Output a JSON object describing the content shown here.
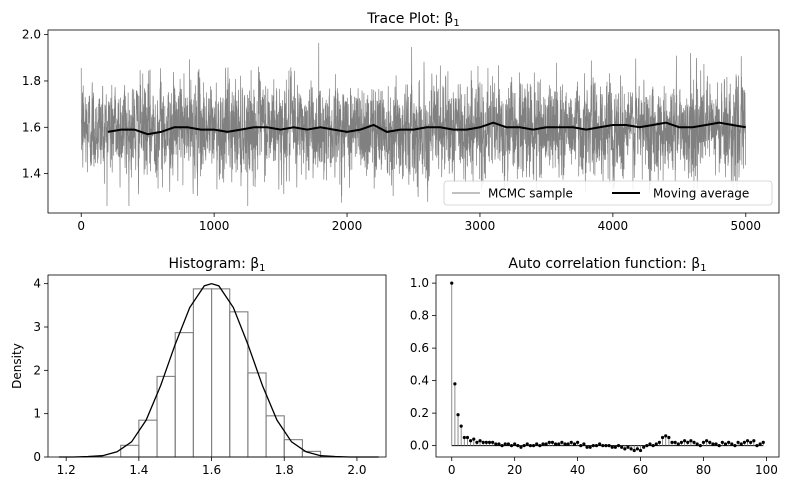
{
  "chart_data": [
    {
      "type": "line",
      "title": "Trace Plot: β",
      "title_sub": "1",
      "xlim": [
        -250,
        5250
      ],
      "ylim": [
        1.23,
        2.02
      ],
      "xticks": [
        0,
        1000,
        2000,
        3000,
        4000,
        5000
      ],
      "yticks": [
        1.4,
        1.6,
        1.8,
        2.0
      ],
      "n_samples": 5000,
      "mean": 1.595,
      "sd": 0.1,
      "series": [
        {
          "name": "MCMC sample",
          "color": "#808080",
          "role": "trace"
        },
        {
          "name": "Moving average",
          "color": "#000000",
          "role": "moving_average",
          "x": [
            200,
            300,
            400,
            500,
            600,
            700,
            800,
            900,
            1000,
            1100,
            1200,
            1300,
            1400,
            1500,
            1600,
            1700,
            1800,
            1900,
            2000,
            2100,
            2200,
            2300,
            2400,
            2500,
            2600,
            2700,
            2800,
            2900,
            3000,
            3100,
            3200,
            3300,
            3400,
            3500,
            3600,
            3700,
            3800,
            3900,
            4000,
            4100,
            4200,
            4300,
            4400,
            4500,
            4600,
            4700,
            4800,
            4900,
            5000
          ],
          "y": [
            1.58,
            1.59,
            1.59,
            1.57,
            1.58,
            1.6,
            1.6,
            1.59,
            1.59,
            1.58,
            1.59,
            1.6,
            1.6,
            1.59,
            1.6,
            1.59,
            1.6,
            1.59,
            1.58,
            1.59,
            1.61,
            1.58,
            1.59,
            1.59,
            1.6,
            1.6,
            1.59,
            1.59,
            1.6,
            1.62,
            1.6,
            1.6,
            1.59,
            1.6,
            1.6,
            1.6,
            1.59,
            1.6,
            1.61,
            1.61,
            1.6,
            1.61,
            1.62,
            1.6,
            1.6,
            1.61,
            1.62,
            1.61,
            1.6
          ]
        }
      ],
      "legend": "lower-right"
    },
    {
      "type": "bar",
      "title": "Histogram: β",
      "title_sub": "1",
      "ylabel": "Density",
      "xlim": [
        1.15,
        2.08
      ],
      "ylim": [
        0,
        4.2
      ],
      "xticks": [
        1.2,
        1.4,
        1.6,
        1.8,
        2.0
      ],
      "yticks": [
        0,
        1,
        2,
        3,
        4
      ],
      "bin_edges": [
        1.35,
        1.4,
        1.45,
        1.5,
        1.55,
        1.6,
        1.65,
        1.7,
        1.75,
        1.8,
        1.85,
        1.9
      ],
      "values": [
        0.27,
        0.85,
        1.86,
        2.87,
        3.88,
        3.88,
        3.35,
        1.94,
        0.95,
        0.4,
        0.13
      ],
      "kde": {
        "x": [
          1.18,
          1.22,
          1.26,
          1.3,
          1.34,
          1.38,
          1.42,
          1.46,
          1.5,
          1.54,
          1.58,
          1.6,
          1.62,
          1.66,
          1.7,
          1.74,
          1.78,
          1.82,
          1.86,
          1.9,
          1.94,
          1.98,
          2.02,
          2.06
        ],
        "y": [
          0.0,
          0.0,
          0.01,
          0.03,
          0.12,
          0.35,
          0.85,
          1.65,
          2.6,
          3.45,
          3.95,
          4.0,
          3.95,
          3.45,
          2.6,
          1.65,
          0.85,
          0.35,
          0.12,
          0.03,
          0.01,
          0.0,
          0.0,
          0.0
        ]
      }
    },
    {
      "type": "scatter",
      "title": "Auto correlation function: β",
      "title_sub": "1",
      "xlim": [
        -5,
        104
      ],
      "ylim": [
        -0.07,
        1.05
      ],
      "xticks": [
        0,
        20,
        40,
        60,
        80,
        100
      ],
      "yticks": [
        0.0,
        0.2,
        0.4,
        0.6,
        0.8,
        1.0
      ],
      "x": [
        0,
        1,
        2,
        3,
        4,
        5,
        6,
        7,
        8,
        9,
        10,
        11,
        12,
        13,
        14,
        15,
        16,
        17,
        18,
        19,
        20,
        21,
        22,
        23,
        24,
        25,
        26,
        27,
        28,
        29,
        30,
        31,
        32,
        33,
        34,
        35,
        36,
        37,
        38,
        39,
        40,
        41,
        42,
        43,
        44,
        45,
        46,
        47,
        48,
        49,
        50,
        51,
        52,
        53,
        54,
        55,
        56,
        57,
        58,
        59,
        60,
        61,
        62,
        63,
        64,
        65,
        66,
        67,
        68,
        69,
        70,
        71,
        72,
        73,
        74,
        75,
        76,
        77,
        78,
        79,
        80,
        81,
        82,
        83,
        84,
        85,
        86,
        87,
        88,
        89,
        90,
        91,
        92,
        93,
        94,
        95,
        96,
        97,
        98,
        99
      ],
      "values": [
        1.0,
        0.38,
        0.19,
        0.12,
        0.05,
        0.05,
        0.03,
        0.04,
        0.02,
        0.03,
        0.02,
        0.02,
        0.02,
        0.02,
        0.01,
        0.01,
        0.0,
        0.01,
        0.01,
        0.0,
        0.01,
        0.0,
        -0.01,
        0.0,
        0.01,
        0.0,
        0.0,
        0.01,
        0.0,
        0.01,
        0.01,
        0.02,
        0.02,
        0.01,
        0.01,
        0.02,
        0.01,
        0.01,
        0.02,
        0.01,
        0.02,
        0.0,
        0.01,
        -0.01,
        -0.01,
        0.0,
        0.0,
        0.01,
        0.0,
        0.0,
        0.0,
        -0.01,
        -0.01,
        0.0,
        -0.01,
        -0.02,
        -0.01,
        -0.02,
        -0.03,
        -0.02,
        -0.03,
        -0.01,
        0.0,
        0.01,
        0.0,
        0.01,
        0.02,
        0.05,
        0.06,
        0.05,
        0.02,
        0.02,
        0.01,
        0.02,
        0.03,
        0.02,
        0.03,
        0.02,
        0.01,
        0.0,
        0.02,
        0.03,
        0.02,
        0.01,
        0.01,
        0.0,
        0.02,
        0.01,
        0.02,
        0.01,
        0.0,
        0.02,
        0.01,
        0.02,
        0.03,
        0.02,
        0.03,
        0.0,
        0.01,
        0.02
      ]
    }
  ]
}
